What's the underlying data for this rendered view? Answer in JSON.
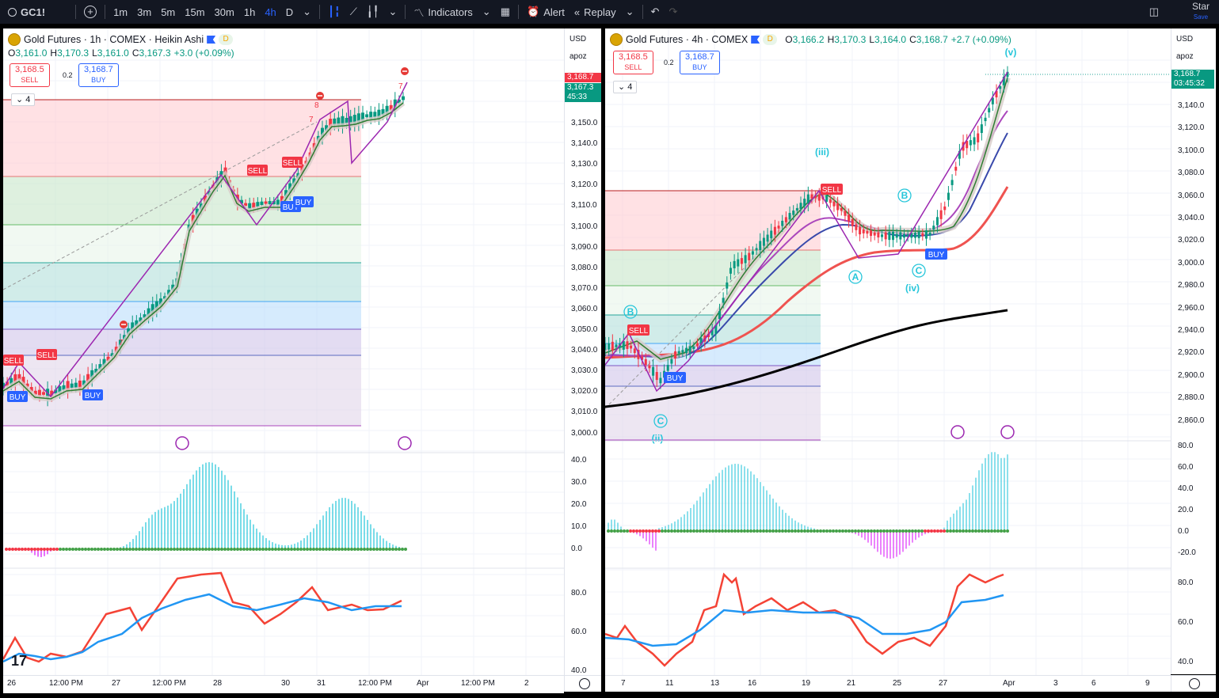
{
  "toolbar": {
    "symbol": "GC1!",
    "intervals": [
      "1m",
      "3m",
      "5m",
      "15m",
      "30m",
      "1h",
      "4h",
      "D"
    ],
    "active_interval": "4h",
    "indicators_label": "Indicators",
    "alert_label": "Alert",
    "replay_label": "Replay",
    "star_label": "Star",
    "save_label": "Save"
  },
  "left_chart": {
    "title": "Gold Futures · 1h · COMEX · Heikin Ashi",
    "badge": "D",
    "ohlc": {
      "o_label": "O",
      "o": "3,161.0",
      "h_label": "H",
      "h": "3,170.3",
      "l_label": "L",
      "l": "3,161.0",
      "c_label": "C",
      "c": "3,167.3",
      "change": "+3.0 (+0.09%)"
    },
    "sell": {
      "price": "3,168.5",
      "label": "SELL"
    },
    "spread": "0.2",
    "buy": {
      "price": "3,168.7",
      "label": "BUY"
    },
    "collapse": "4",
    "currency": "USD",
    "scale_mode": "apoz",
    "last_price": "3,168.7",
    "close_price": "3,167.3",
    "countdown": "45:33",
    "price_ticks": [
      "3,150.0",
      "3,140.0",
      "3,130.0",
      "3,120.0",
      "3,110.0",
      "3,100.0",
      "3,090.0",
      "3,080.0",
      "3,070.0",
      "3,060.0",
      "3,050.0",
      "3,040.0",
      "3,030.0",
      "3,020.0",
      "3,010.0",
      "3,000.0"
    ],
    "osc_ticks": [
      "40.0",
      "30.0",
      "20.0",
      "10.0",
      "0.0"
    ],
    "rsi_ticks": [
      "80.0",
      "60.0",
      "40.0"
    ],
    "time_ticks": [
      "26",
      "12:00 PM",
      "27",
      "12:00 PM",
      "28",
      "30",
      "31",
      "12:00 PM",
      "Apr",
      "12:00 PM",
      "2"
    ],
    "signals": [
      "SELL",
      "BUY",
      "BUY",
      "SELL",
      "SELL",
      "BUY",
      "BUY"
    ],
    "wave_numbers": [
      "7",
      "7",
      "8",
      "7"
    ]
  },
  "right_chart": {
    "title": "Gold Futures · 4h · COMEX",
    "badge": "D",
    "ohlc": {
      "o_label": "O",
      "o": "3,166.2",
      "h_label": "H",
      "h": "3,170.3",
      "l_label": "L",
      "l": "3,164.0",
      "c_label": "C",
      "c": "3,168.7",
      "change": "+2.7 (+0.09%)"
    },
    "sell": {
      "price": "3,168.5",
      "label": "SELL"
    },
    "spread": "0.2",
    "buy": {
      "price": "3,168.7",
      "label": "BUY"
    },
    "collapse": "4",
    "currency": "USD",
    "scale_mode": "apoz",
    "last_price": "3,168.7",
    "countdown": "03:45:32",
    "price_ticks": [
      "3,140.0",
      "3,120.0",
      "3,100.0",
      "3,080.0",
      "3,060.0",
      "3,040.0",
      "3,020.0",
      "3,000.0",
      "2,980.0",
      "2,960.0",
      "2,940.0",
      "2,920.0",
      "2,900.0",
      "2,880.0",
      "2,860.0"
    ],
    "osc_ticks": [
      "80.0",
      "60.0",
      "40.0",
      "20.0",
      "0.0",
      "-20.0"
    ],
    "rsi_ticks": [
      "80.0",
      "60.0",
      "40.0"
    ],
    "time_ticks": [
      "7",
      "11",
      "13",
      "16",
      "19",
      "21",
      "25",
      "27",
      "Apr",
      "3",
      "6",
      "9"
    ],
    "signals": [
      "SELL",
      "BUY",
      "SELL",
      "BUY"
    ],
    "wave_labels": [
      "(v)",
      "(iii)",
      "B",
      "A",
      "C",
      "(iv)",
      "B",
      "C",
      "(ii)"
    ]
  },
  "colors": {
    "up": "#089981",
    "down": "#f23645",
    "accent": "#2962ff",
    "purple": "#9c27b0",
    "fib_red": "#ffcdd2",
    "fib_green": "#c8e6c9",
    "fib_teal": "#b2dfdb",
    "fib_blue": "#bbdefb",
    "fib_violet": "#d1c4e9"
  }
}
